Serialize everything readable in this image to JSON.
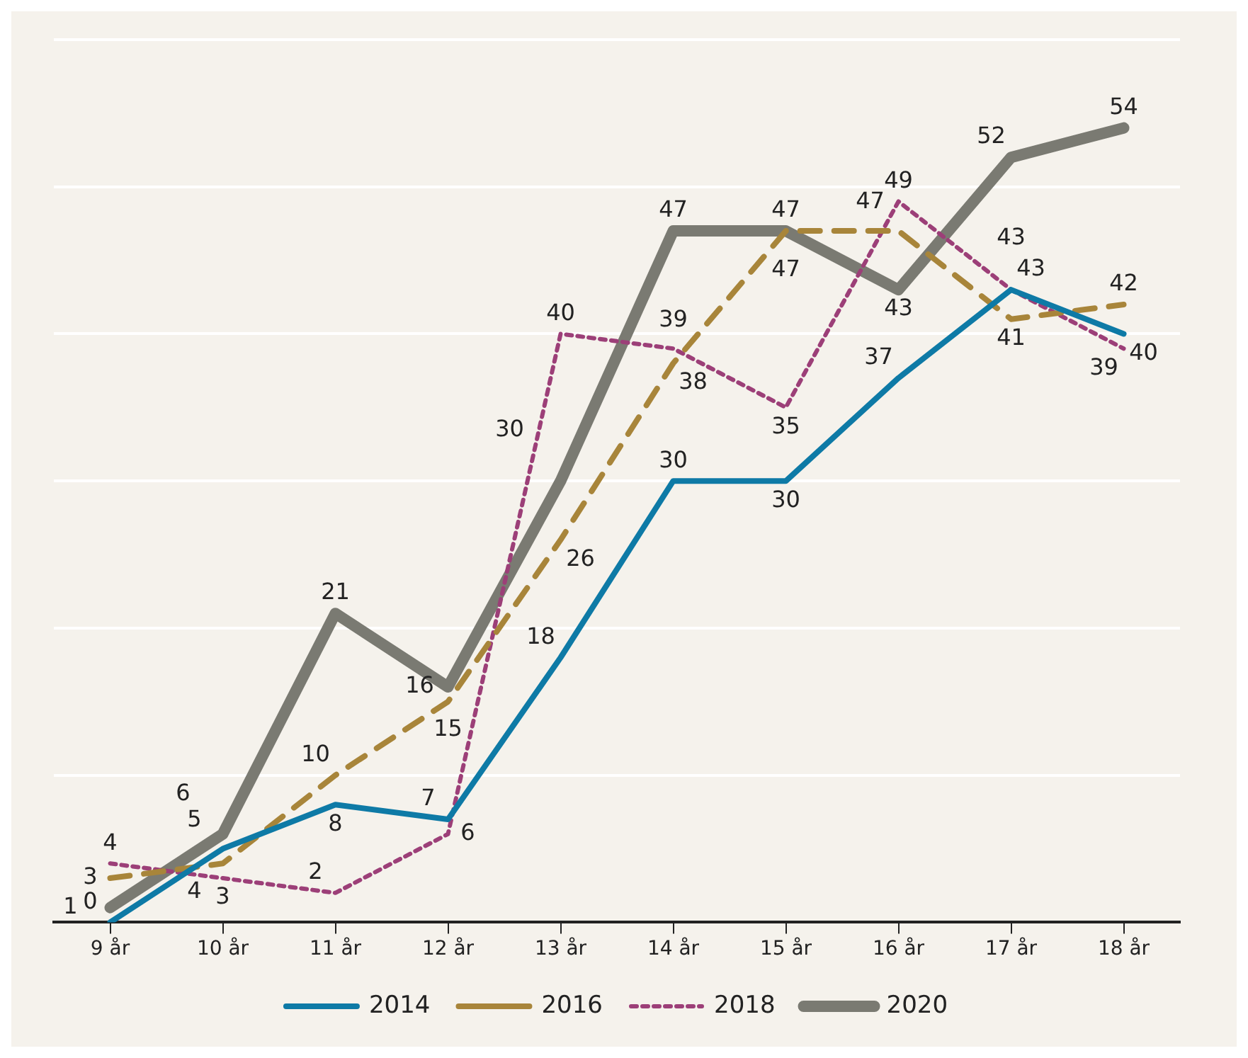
{
  "chart_data": {
    "type": "line",
    "categories": [
      "9 år",
      "10 år",
      "11 år",
      "12 år",
      "13 år",
      "14 år",
      "15 år",
      "16 år",
      "17 år",
      "18 år"
    ],
    "series": [
      {
        "name": "2014",
        "color": "#0e7aa6",
        "line_style": "solid",
        "values": [
          0,
          5,
          8,
          7,
          18,
          30,
          30,
          37,
          43,
          40
        ]
      },
      {
        "name": "2016",
        "color": "#a8853a",
        "line_style": "dashed",
        "values": [
          3,
          4,
          10,
          15,
          26,
          38,
          47,
          47,
          41,
          42
        ]
      },
      {
        "name": "2018",
        "color": "#9c3f78",
        "line_style": "dotted",
        "values": [
          4,
          3,
          2,
          6,
          40,
          39,
          35,
          49,
          43,
          39
        ]
      },
      {
        "name": "2020",
        "color": "#7a7a72",
        "line_style": "solid",
        "values": [
          1,
          6,
          21,
          16,
          30,
          47,
          47,
          43,
          52,
          54
        ]
      }
    ],
    "ylim": [
      0,
      60
    ],
    "yticks": [
      {
        "value": 0,
        "label": null
      },
      {
        "value": 10,
        "label": null
      },
      {
        "value": 20,
        "label": null
      },
      {
        "value": 30,
        "label": null
      },
      {
        "value": 40,
        "label": null
      },
      {
        "value": 50,
        "label": null
      },
      {
        "value": 60,
        "label": null
      }
    ],
    "tick_labels": "x",
    "grid": "y",
    "legend": "bottom",
    "marker": "none",
    "data_labels": true
  }
}
